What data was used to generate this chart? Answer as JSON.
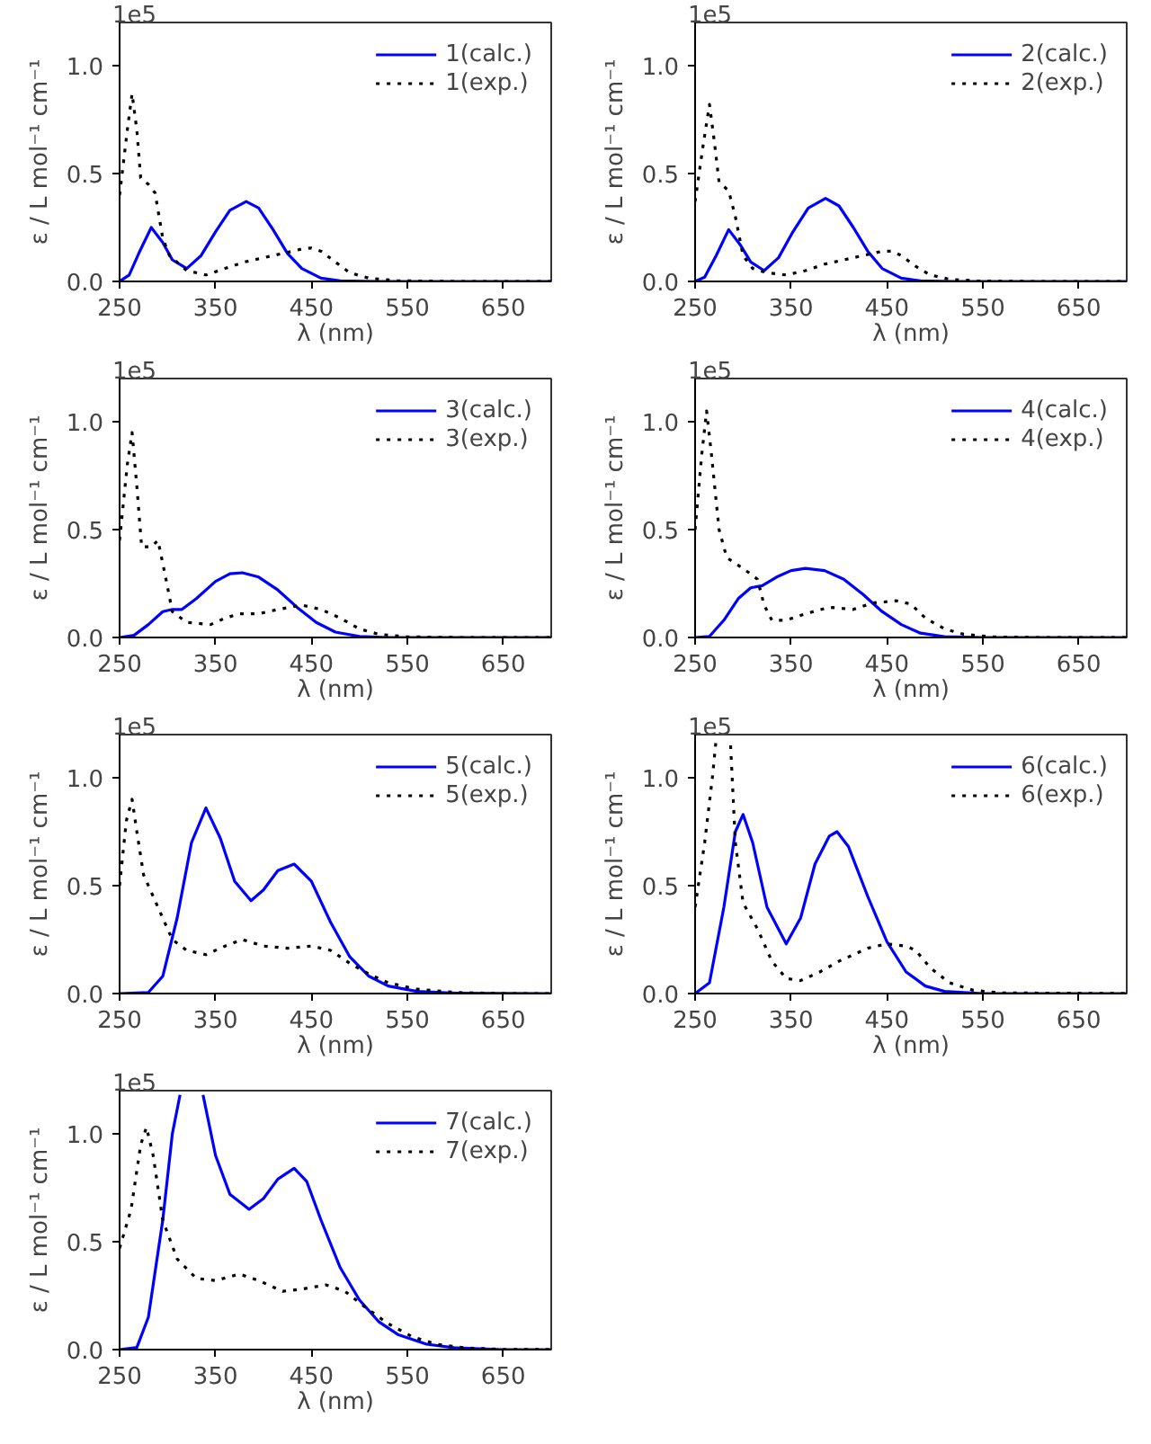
{
  "chart_data": [
    {
      "type": "line",
      "xlabel": "λ (nm)",
      "ylabel": "ε / L mol⁻¹ cm⁻¹",
      "annotations": [
        "1e5"
      ],
      "xlim": [
        250,
        700
      ],
      "ylim": [
        0,
        1.2
      ],
      "xticks": [
        250,
        350,
        450,
        550,
        650
      ],
      "yticks": [
        {
          "value": 0,
          "label": "0.0"
        },
        {
          "value": 0.5,
          "label": "0.5"
        },
        {
          "value": 1,
          "label": "1.0"
        }
      ],
      "grid": false,
      "legend": "top right",
      "series": [
        {
          "name": "1(calc.)",
          "color": "#0000ff",
          "line_style": "solid",
          "x": [
            250,
            260,
            270,
            283,
            295,
            305,
            320,
            335,
            350,
            365,
            382,
            395,
            410,
            425,
            440,
            460,
            480,
            520,
            700
          ],
          "values": [
            0,
            0.03,
            0.13,
            0.25,
            0.18,
            0.1,
            0.06,
            0.12,
            0.23,
            0.33,
            0.37,
            0.34,
            0.24,
            0.13,
            0.06,
            0.015,
            0.003,
            0,
            0
          ]
        },
        {
          "name": "1(exp.)",
          "color": "#000000",
          "line_style": "dotted",
          "x": [
            250,
            258,
            263,
            268,
            272,
            280,
            287,
            295,
            302,
            320,
            340,
            360,
            380,
            400,
            420,
            440,
            450,
            460,
            475,
            490,
            510,
            540,
            600,
            700
          ],
          "values": [
            0.4,
            0.7,
            0.87,
            0.7,
            0.48,
            0.45,
            0.41,
            0.2,
            0.12,
            0.05,
            0.03,
            0.06,
            0.09,
            0.11,
            0.13,
            0.15,
            0.155,
            0.14,
            0.09,
            0.04,
            0.015,
            0.003,
            0,
            0
          ]
        }
      ]
    },
    {
      "type": "line",
      "xlabel": "λ (nm)",
      "ylabel": "ε / L mol⁻¹ cm⁻¹",
      "annotations": [
        "1e5"
      ],
      "xlim": [
        250,
        700
      ],
      "ylim": [
        0,
        1.2
      ],
      "xticks": [
        250,
        350,
        450,
        550,
        650
      ],
      "yticks": [
        {
          "value": 0,
          "label": "0.0"
        },
        {
          "value": 0.5,
          "label": "0.5"
        },
        {
          "value": 1,
          "label": "1.0"
        }
      ],
      "grid": false,
      "legend": "top right",
      "series": [
        {
          "name": "2(calc.)",
          "color": "#0000ff",
          "line_style": "solid",
          "x": [
            250,
            260,
            272,
            285,
            297,
            308,
            322,
            337,
            352,
            368,
            386,
            400,
            415,
            430,
            445,
            465,
            485,
            520,
            700
          ],
          "values": [
            0,
            0.02,
            0.12,
            0.24,
            0.17,
            0.09,
            0.05,
            0.11,
            0.23,
            0.34,
            0.385,
            0.35,
            0.25,
            0.14,
            0.06,
            0.015,
            0.003,
            0,
            0
          ]
        },
        {
          "name": "2(exp.)",
          "color": "#000000",
          "line_style": "dotted",
          "x": [
            250,
            258,
            265,
            270,
            275,
            285,
            292,
            300,
            310,
            325,
            345,
            365,
            385,
            405,
            425,
            445,
            455,
            465,
            480,
            495,
            515,
            545,
            600,
            700
          ],
          "values": [
            0.37,
            0.62,
            0.82,
            0.65,
            0.46,
            0.42,
            0.3,
            0.12,
            0.06,
            0.04,
            0.03,
            0.05,
            0.08,
            0.1,
            0.12,
            0.14,
            0.14,
            0.12,
            0.07,
            0.03,
            0.01,
            0.002,
            0,
            0
          ]
        }
      ]
    },
    {
      "type": "line",
      "xlabel": "λ (nm)",
      "ylabel": "ε / L mol⁻¹ cm⁻¹",
      "annotations": [
        "1e5"
      ],
      "xlim": [
        250,
        700
      ],
      "ylim": [
        0,
        1.2
      ],
      "xticks": [
        250,
        350,
        450,
        550,
        650
      ],
      "yticks": [
        {
          "value": 0,
          "label": "0.0"
        },
        {
          "value": 0.5,
          "label": "0.5"
        },
        {
          "value": 1,
          "label": "1.0"
        }
      ],
      "grid": false,
      "legend": "top right",
      "series": [
        {
          "name": "3(calc.)",
          "color": "#0000ff",
          "line_style": "solid",
          "x": [
            250,
            265,
            280,
            295,
            305,
            315,
            330,
            350,
            365,
            378,
            395,
            415,
            435,
            455,
            475,
            500,
            530,
            700
          ],
          "values": [
            0,
            0.01,
            0.06,
            0.12,
            0.13,
            0.13,
            0.18,
            0.26,
            0.295,
            0.3,
            0.28,
            0.22,
            0.14,
            0.07,
            0.025,
            0.005,
            0,
            0
          ]
        },
        {
          "name": "3(exp.)",
          "color": "#000000",
          "line_style": "dotted",
          "x": [
            250,
            258,
            263,
            268,
            273,
            283,
            290,
            297,
            305,
            320,
            345,
            360,
            375,
            395,
            415,
            440,
            460,
            480,
            500,
            520,
            550,
            600,
            700
          ],
          "values": [
            0.45,
            0.8,
            0.95,
            0.7,
            0.42,
            0.42,
            0.45,
            0.3,
            0.12,
            0.07,
            0.06,
            0.09,
            0.11,
            0.11,
            0.13,
            0.15,
            0.13,
            0.09,
            0.04,
            0.015,
            0.003,
            0,
            0
          ]
        }
      ]
    },
    {
      "type": "line",
      "xlabel": "λ (nm)",
      "ylabel": "ε / L mol⁻¹ cm⁻¹",
      "annotations": [
        "1e5"
      ],
      "xlim": [
        250,
        700
      ],
      "ylim": [
        0,
        1.2
      ],
      "xticks": [
        250,
        350,
        450,
        550,
        650
      ],
      "yticks": [
        {
          "value": 0,
          "label": "0.0"
        },
        {
          "value": 0.5,
          "label": "0.5"
        },
        {
          "value": 1,
          "label": "1.0"
        }
      ],
      "grid": false,
      "legend": "top right",
      "series": [
        {
          "name": "4(calc.)",
          "color": "#0000ff",
          "line_style": "solid",
          "x": [
            250,
            265,
            280,
            295,
            308,
            320,
            335,
            350,
            365,
            385,
            405,
            425,
            445,
            465,
            485,
            510,
            550,
            700
          ],
          "values": [
            0,
            0.005,
            0.08,
            0.18,
            0.23,
            0.24,
            0.28,
            0.31,
            0.32,
            0.31,
            0.27,
            0.2,
            0.12,
            0.06,
            0.02,
            0.004,
            0,
            0
          ]
        },
        {
          "name": "4(exp.)",
          "color": "#000000",
          "line_style": "dotted",
          "x": [
            250,
            257,
            262,
            267,
            275,
            283,
            300,
            315,
            322,
            330,
            345,
            365,
            390,
            415,
            435,
            460,
            475,
            490,
            510,
            530,
            560,
            600,
            700
          ],
          "values": [
            0.5,
            0.85,
            1.05,
            0.85,
            0.5,
            0.37,
            0.32,
            0.27,
            0.15,
            0.08,
            0.08,
            0.11,
            0.14,
            0.13,
            0.16,
            0.17,
            0.155,
            0.09,
            0.04,
            0.015,
            0.003,
            0,
            0
          ]
        }
      ]
    },
    {
      "type": "line",
      "xlabel": "λ (nm)",
      "ylabel": "ε / L mol⁻¹ cm⁻¹",
      "annotations": [
        "1e5"
      ],
      "xlim": [
        250,
        700
      ],
      "ylim": [
        0,
        1.2
      ],
      "xticks": [
        250,
        350,
        450,
        550,
        650
      ],
      "yticks": [
        {
          "value": 0,
          "label": "0.0"
        },
        {
          "value": 0.5,
          "label": "0.5"
        },
        {
          "value": 1,
          "label": "1.0"
        }
      ],
      "grid": false,
      "legend": "top right",
      "series": [
        {
          "name": "5(calc.)",
          "color": "#0000ff",
          "line_style": "solid",
          "x": [
            250,
            280,
            295,
            310,
            325,
            340,
            355,
            370,
            387,
            400,
            415,
            432,
            450,
            470,
            490,
            510,
            530,
            560,
            600,
            700
          ],
          "values": [
            0,
            0.005,
            0.08,
            0.35,
            0.7,
            0.86,
            0.72,
            0.52,
            0.43,
            0.48,
            0.57,
            0.6,
            0.52,
            0.33,
            0.17,
            0.08,
            0.035,
            0.01,
            0.002,
            0
          ]
        },
        {
          "name": "5(exp.)",
          "color": "#000000",
          "line_style": "dotted",
          "x": [
            250,
            257,
            263,
            268,
            275,
            290,
            305,
            320,
            340,
            360,
            378,
            400,
            425,
            450,
            470,
            490,
            510,
            530,
            560,
            600,
            650,
            700
          ],
          "values": [
            0.5,
            0.8,
            0.9,
            0.75,
            0.55,
            0.4,
            0.25,
            0.2,
            0.18,
            0.22,
            0.25,
            0.22,
            0.21,
            0.22,
            0.2,
            0.14,
            0.09,
            0.05,
            0.02,
            0.005,
            0,
            0
          ]
        }
      ]
    },
    {
      "type": "line",
      "xlabel": "λ (nm)",
      "ylabel": "ε / L mol⁻¹ cm⁻¹",
      "annotations": [
        "1e5"
      ],
      "xlim": [
        250,
        700
      ],
      "ylim": [
        0,
        1.2
      ],
      "xticks": [
        250,
        350,
        450,
        550,
        650
      ],
      "yticks": [
        {
          "value": 0,
          "label": "0.0"
        },
        {
          "value": 0.5,
          "label": "0.5"
        },
        {
          "value": 1,
          "label": "1.0"
        }
      ],
      "grid": false,
      "legend": "top right",
      "series": [
        {
          "name": "6(calc.)",
          "color": "#0000ff",
          "line_style": "solid",
          "x": [
            250,
            265,
            280,
            292,
            300,
            310,
            325,
            345,
            360,
            375,
            390,
            398,
            410,
            430,
            450,
            470,
            490,
            510,
            550,
            700
          ],
          "values": [
            0,
            0.05,
            0.4,
            0.75,
            0.83,
            0.7,
            0.4,
            0.23,
            0.35,
            0.6,
            0.73,
            0.75,
            0.68,
            0.45,
            0.24,
            0.1,
            0.035,
            0.01,
            0,
            0
          ]
        },
        {
          "name": "6(exp.)",
          "color": "#000000",
          "line_style": "dotted",
          "x": [
            250,
            260,
            268,
            272,
            278,
            284,
            287,
            292,
            300,
            315,
            330,
            345,
            360,
            380,
            400,
            430,
            450,
            470,
            480,
            495,
            515,
            540,
            570,
            700
          ],
          "values": [
            0.4,
            0.7,
            1.0,
            1.18,
            null,
            null,
            1.15,
            0.7,
            0.42,
            0.3,
            0.15,
            0.07,
            0.06,
            0.1,
            0.15,
            0.21,
            0.23,
            0.22,
            0.2,
            0.12,
            0.05,
            0.015,
            0.003,
            0
          ]
        }
      ]
    },
    {
      "type": "line",
      "xlabel": "λ (nm)",
      "ylabel": "ε / L mol⁻¹ cm⁻¹",
      "annotations": [
        "1e5"
      ],
      "xlim": [
        250,
        700
      ],
      "ylim": [
        0,
        1.2
      ],
      "xticks": [
        250,
        350,
        450,
        550,
        650
      ],
      "yticks": [
        {
          "value": 0,
          "label": "0.0"
        },
        {
          "value": 0.5,
          "label": "0.5"
        },
        {
          "value": 1,
          "label": "1.0"
        }
      ],
      "grid": false,
      "legend": "top right",
      "series": [
        {
          "name": "7(calc.)",
          "color": "#0000ff",
          "line_style": "solid",
          "x": [
            250,
            268,
            280,
            295,
            305,
            313,
            320,
            330,
            337,
            350,
            365,
            385,
            400,
            415,
            432,
            445,
            460,
            480,
            500,
            520,
            540,
            570,
            600,
            650,
            700
          ],
          "values": [
            0,
            0.01,
            0.15,
            0.6,
            1.0,
            1.18,
            null,
            null,
            1.18,
            0.9,
            0.72,
            0.65,
            0.7,
            0.79,
            0.84,
            0.78,
            0.6,
            0.38,
            0.23,
            0.13,
            0.07,
            0.025,
            0.008,
            0,
            0
          ]
        },
        {
          "name": "7(exp.)",
          "color": "#000000",
          "line_style": "dotted",
          "x": [
            250,
            262,
            272,
            278,
            285,
            295,
            310,
            330,
            350,
            375,
            395,
            420,
            440,
            465,
            485,
            505,
            530,
            555,
            580,
            610,
            650,
            700
          ],
          "values": [
            0.47,
            0.65,
            0.95,
            1.03,
            0.9,
            0.6,
            0.42,
            0.33,
            0.32,
            0.35,
            0.32,
            0.27,
            0.28,
            0.3,
            0.27,
            0.2,
            0.12,
            0.06,
            0.025,
            0.008,
            0.001,
            0
          ]
        }
      ]
    }
  ]
}
